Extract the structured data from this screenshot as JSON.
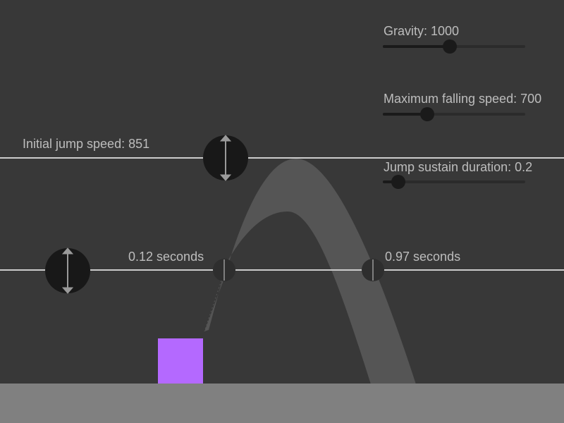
{
  "colors": {
    "background": "#383838",
    "ground": "#808080",
    "player": "#b469ff",
    "arc": "#555555",
    "guide_line": "#cccccc",
    "handle": "#181818"
  },
  "sliders": [
    {
      "label": "Gravity: 1000",
      "fraction": 0.47
    },
    {
      "label": "Maximum falling speed: 700",
      "fraction": 0.31
    },
    {
      "label": "Jump sustain duration: 0.2",
      "fraction": 0.11
    }
  ],
  "jump_speed_label": "Initial jump speed: 851",
  "time_markers": [
    {
      "label": "0.12 seconds"
    },
    {
      "label": "0.97 seconds"
    }
  ],
  "icons": {
    "height_handle": "vertical-double-arrow-icon",
    "time_marker": "vertical-tick-icon"
  }
}
